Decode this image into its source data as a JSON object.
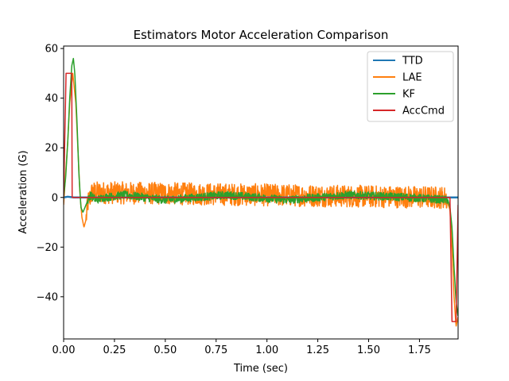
{
  "chart_data": {
    "type": "line",
    "title": "Estimators Motor Acceleration Comparison",
    "xlabel": "Time (sec)",
    "ylabel": "Acceleration (G)",
    "xlim": [
      0,
      1.94
    ],
    "ylim": [
      -57,
      61
    ],
    "xticks": [
      0,
      0.25,
      0.5,
      0.75,
      1.0,
      1.25,
      1.5,
      1.75
    ],
    "xtick_labels": [
      "0.00",
      "0.25",
      "0.50",
      "0.75",
      "1.00",
      "1.25",
      "1.50",
      "1.75"
    ],
    "yticks": [
      -40,
      -20,
      0,
      20,
      40,
      60
    ],
    "ytick_labels": [
      "−40",
      "−20",
      "0",
      "20",
      "40",
      "60"
    ],
    "grid": false,
    "legend_position": "top-right",
    "series": [
      {
        "name": "TTD",
        "color": "#1f77b4",
        "x": [
          0,
          0.02,
          0.05,
          0.1,
          0.3,
          0.6,
          1.0,
          1.4,
          1.8,
          1.9,
          1.94
        ],
        "y": [
          0,
          0.3,
          0,
          0,
          0,
          0,
          0,
          0,
          0,
          0,
          0
        ]
      },
      {
        "name": "LAE",
        "color": "#ff7f0e",
        "x": [
          0,
          0.01,
          0.02,
          0.03,
          0.045,
          0.06,
          0.07,
          0.08,
          0.09,
          0.1,
          0.11,
          0.12,
          0.14,
          1.85,
          1.88,
          1.9,
          1.91,
          1.92,
          1.93,
          1.94
        ],
        "y": [
          -3,
          10,
          22,
          38,
          50,
          38,
          20,
          2,
          -8,
          -12,
          -9,
          -2,
          2,
          0,
          0,
          -5,
          -20,
          -40,
          -52,
          -48
        ],
        "noise": {
          "x_range": [
            0.11,
            1.89
          ],
          "amplitude": 4.5
        }
      },
      {
        "name": "KF",
        "color": "#2ca02c",
        "x": [
          0,
          0.01,
          0.02,
          0.03,
          0.04,
          0.048,
          0.055,
          0.065,
          0.075,
          0.085,
          0.095,
          0.11,
          0.13,
          0.16,
          0.2,
          0.3,
          0.5,
          0.8,
          1.1,
          1.4,
          1.7,
          1.89,
          1.9,
          1.91,
          1.92,
          1.93,
          1.94
        ],
        "y": [
          0,
          8,
          22,
          40,
          53,
          56,
          50,
          32,
          10,
          -4,
          -6,
          -3,
          1,
          -1,
          0,
          1,
          -1,
          1,
          -1,
          1,
          0,
          -1,
          -4,
          -12,
          -28,
          -42,
          -48
        ],
        "noise": {
          "x_range": [
            0.12,
            1.89
          ],
          "amplitude": 1.6
        }
      },
      {
        "name": "AccCmd",
        "color": "#d62728",
        "x": [
          0,
          0.012,
          0.04,
          0.042,
          0.045,
          1.89,
          1.9,
          1.91,
          1.93,
          1.94
        ],
        "y": [
          0,
          50,
          50,
          0,
          0,
          0,
          0,
          -50,
          -50,
          -3
        ]
      }
    ]
  }
}
